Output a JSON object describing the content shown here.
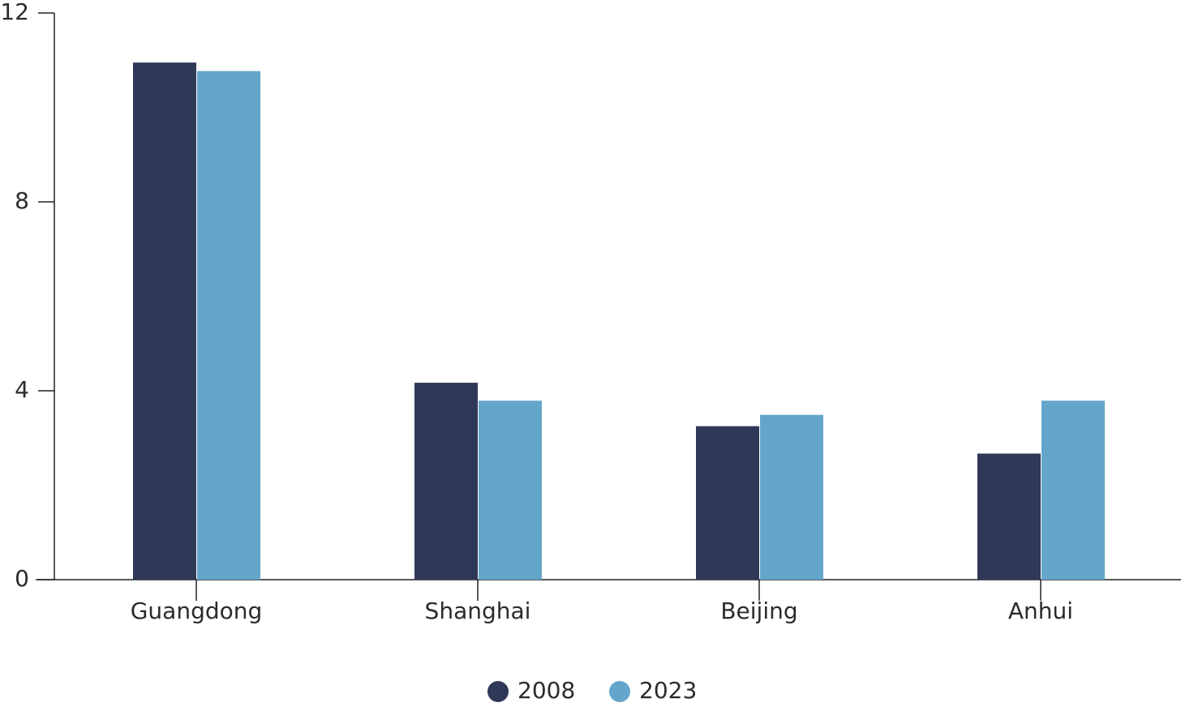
{
  "chart_data": {
    "type": "bar",
    "title": "",
    "xlabel": "",
    "ylabel": "",
    "categories": [
      "Guangdong",
      "Shanghai",
      "Beijing",
      "Anhui"
    ],
    "series": [
      {
        "name": "2008",
        "color": "#2f3857",
        "values": [
          10.95,
          4.17,
          3.25,
          2.67
        ]
      },
      {
        "name": "2023",
        "color": "#64a6c9",
        "values": [
          10.77,
          3.79,
          3.49,
          3.79
        ]
      }
    ],
    "ylim": [
      0,
      12
    ],
    "yticks": [
      "0",
      "4",
      "8",
      "12"
    ],
    "grid": false,
    "legend": "bottom-center"
  }
}
